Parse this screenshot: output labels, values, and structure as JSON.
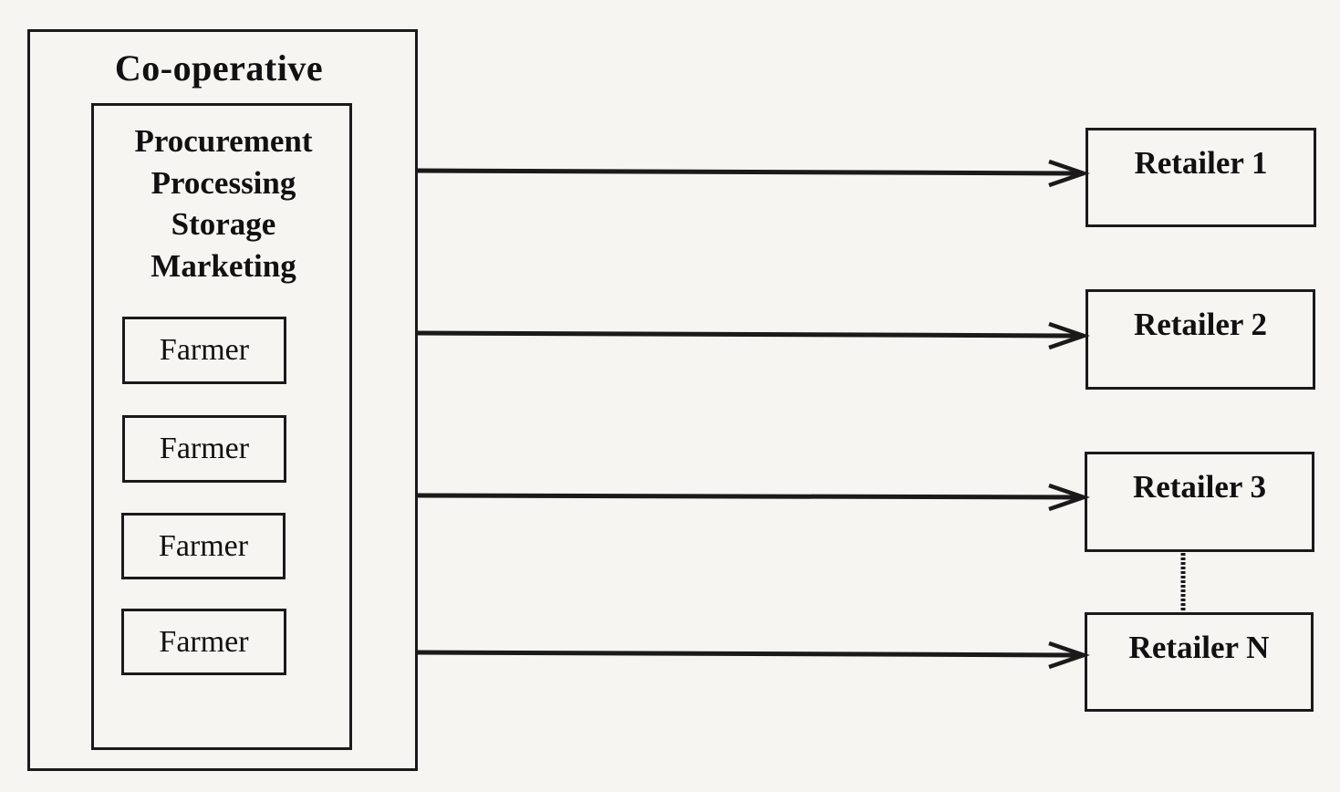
{
  "cooperative": {
    "title": "Co-operative",
    "functions": [
      "Procurement",
      "Processing",
      "Storage",
      "Marketing"
    ],
    "farmers": [
      "Farmer",
      "Farmer",
      "Farmer",
      "Farmer"
    ]
  },
  "retailers": [
    "Retailer 1",
    "Retailer 2",
    "Retailer 3",
    "Retailer N"
  ],
  "colors": {
    "line": "#1a1a1a",
    "background": "#f6f5f2"
  }
}
